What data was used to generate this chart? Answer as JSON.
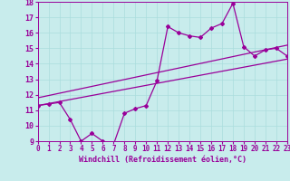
{
  "xlabel": "Windchill (Refroidissement éolien,°C)",
  "background_color": "#c8ecec",
  "line_color": "#990099",
  "grid_color": "#aadddd",
  "xmin": 0,
  "xmax": 23,
  "ymin": 9,
  "ymax": 18,
  "x_ticks": [
    0,
    1,
    2,
    3,
    4,
    5,
    6,
    7,
    8,
    9,
    10,
    11,
    12,
    13,
    14,
    15,
    16,
    17,
    18,
    19,
    20,
    21,
    22,
    23
  ],
  "y_ticks": [
    9,
    10,
    11,
    12,
    13,
    14,
    15,
    16,
    17,
    18
  ],
  "zigzag_x": [
    0,
    1,
    2,
    3,
    4,
    5,
    6,
    7,
    8,
    9,
    10,
    11,
    12,
    13,
    14,
    15,
    16,
    17,
    18,
    19,
    20,
    21,
    22,
    23
  ],
  "zigzag_y": [
    11.3,
    11.4,
    11.5,
    10.4,
    9.0,
    9.5,
    9.0,
    8.8,
    10.8,
    11.1,
    11.3,
    12.9,
    16.4,
    16.0,
    15.8,
    15.7,
    16.3,
    16.6,
    17.9,
    15.1,
    14.5,
    14.9,
    15.0,
    14.5
  ],
  "upper_line_x": [
    0,
    23
  ],
  "upper_line_y": [
    11.8,
    15.2
  ],
  "lower_line_x": [
    0,
    23
  ],
  "lower_line_y": [
    11.3,
    14.3
  ],
  "tick_fontsize": 5.5,
  "label_fontsize": 6.0
}
